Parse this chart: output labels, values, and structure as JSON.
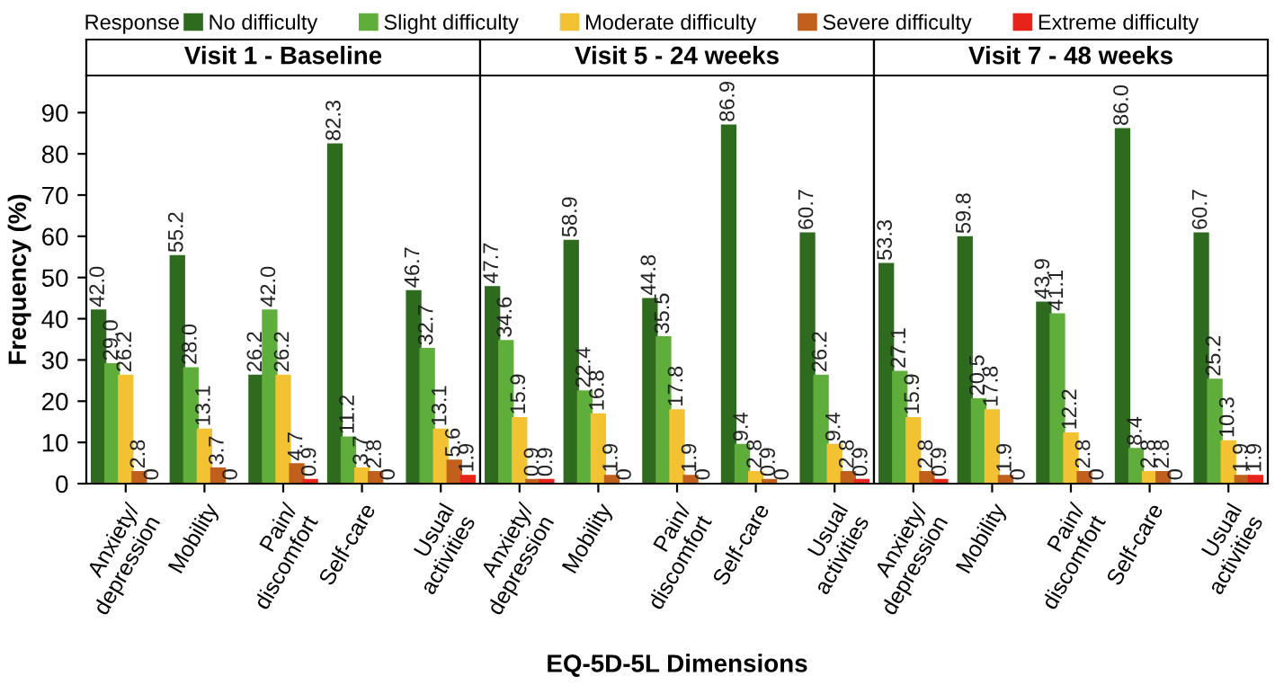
{
  "chart_data": [
    {
      "type": "bar",
      "title": "Visit 1 - Baseline",
      "ylabel": "Frequency (%)",
      "legend_title": "Response",
      "legend": "top",
      "categories": [
        "Anxiety/\ndepression",
        "Mobility",
        "Pain/\ndiscomfort",
        "Self-care",
        "Usual\nactivities"
      ],
      "ylim": [
        0,
        99
      ],
      "yticks": [
        0,
        10,
        20,
        30,
        40,
        50,
        60,
        70,
        80,
        90
      ],
      "data_labels": true,
      "grid": false,
      "series": [
        {
          "name": "No difficulty",
          "color": "#2f6b1f",
          "values": [
            42.0,
            55.2,
            26.2,
            82.3,
            46.7
          ],
          "value_labels": [
            "42.0",
            "55.2",
            "26.2",
            "82.3",
            "46.7"
          ]
        },
        {
          "name": "Slight difficulty",
          "color": "#5fae3c",
          "values": [
            29.0,
            28.0,
            42.0,
            11.2,
            32.7
          ],
          "value_labels": [
            "29.0",
            "28.0",
            "42.0",
            "11.2",
            "32.7"
          ]
        },
        {
          "name": "Moderate difficulty",
          "color": "#f2c232",
          "values": [
            26.2,
            13.1,
            26.2,
            3.7,
            13.1
          ]
        },
        {
          "name": "Severe difficulty",
          "color": "#c0601c",
          "values": [
            2.8,
            3.7,
            4.7,
            2.8,
            5.6
          ]
        },
        {
          "name": "Extreme difficulty",
          "color": "#e8231a",
          "values": [
            0,
            0,
            0.9,
            0,
            1.9
          ]
        }
      ]
    },
    {
      "type": "bar",
      "title": "Visit 5 - 24 weeks",
      "xlabel": "EQ-5D-5L Dimensions",
      "tick_labels": "x",
      "categories": [
        "Anxiety/\ndepression",
        "Mobility",
        "Pain/\ndiscomfort",
        "Self-care",
        "Usual\nactivities"
      ],
      "ylim": [
        0,
        99
      ],
      "data_labels": true,
      "grid": false,
      "series": [
        {
          "color": "#2f6b1f",
          "values": [
            47.7,
            58.9,
            44.8,
            86.9,
            60.7
          ]
        },
        {
          "color": "#5fae3c",
          "values": [
            34.6,
            22.4,
            35.5,
            9.4,
            26.2
          ]
        },
        {
          "color": "#f2c232",
          "values": [
            15.9,
            16.8,
            17.8,
            2.8,
            9.4
          ]
        },
        {
          "color": "#c0601c",
          "values": [
            0.9,
            1.9,
            1.9,
            0.9,
            2.8
          ]
        },
        {
          "color": "#e8231a",
          "values": [
            0.9,
            0,
            0,
            0,
            0.9
          ]
        }
      ]
    },
    {
      "type": "bar",
      "title": "Visit 7 - 48 weeks",
      "tick_labels": "x",
      "categories": [
        "Anxiety/\ndepression",
        "Mobility",
        "Pain/\ndiscomfort",
        "Self-care",
        "Usual\nactivities"
      ],
      "ylim": [
        0,
        99
      ],
      "data_labels": true,
      "grid": false,
      "series": [
        {
          "color": "#2f6b1f",
          "values": [
            53.3,
            59.8,
            43.9,
            86.0,
            60.7
          ],
          "value_labels": [
            "53.3",
            "59.8",
            "43.9",
            "86.0",
            "60.7"
          ]
        },
        {
          "color": "#5fae3c",
          "values": [
            27.1,
            20.5,
            41.1,
            8.4,
            25.2
          ]
        },
        {
          "color": "#f2c232",
          "values": [
            15.9,
            17.8,
            12.2,
            2.8,
            10.3
          ]
        },
        {
          "color": "#c0601c",
          "values": [
            2.8,
            1.9,
            2.8,
            2.8,
            1.9
          ]
        },
        {
          "color": "#e8231a",
          "values": [
            0.9,
            0,
            0,
            0,
            1.9
          ]
        }
      ]
    }
  ]
}
